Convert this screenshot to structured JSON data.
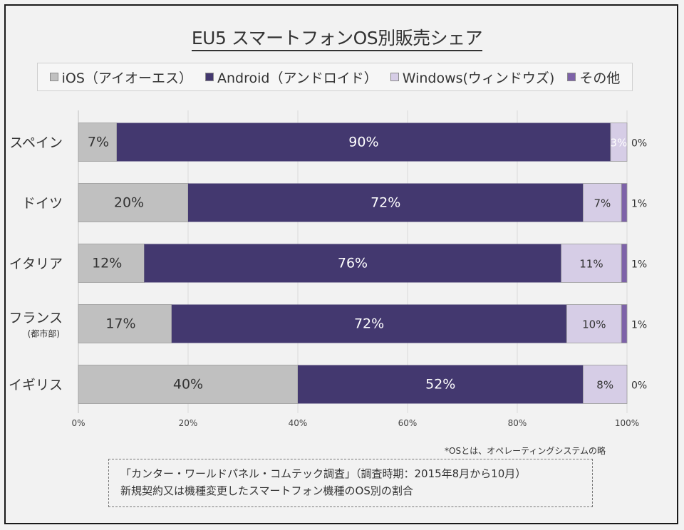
{
  "chart_data": {
    "type": "bar",
    "orientation": "horizontal",
    "stacked": true,
    "title": "EU5 スマートフォンOS別販売シェア",
    "categories": [
      "スペイン",
      "ドイツ",
      "イタリア",
      "フランス",
      "イギリス"
    ],
    "category_sublabels": [
      "",
      "",
      "",
      "(都市部)",
      ""
    ],
    "series": [
      {
        "name": "iOS（アイオーエス）",
        "color": "#c0c0c0",
        "values": [
          7,
          20,
          12,
          17,
          40
        ],
        "labels": [
          "7%",
          "20%",
          "12%",
          "17%",
          "40%"
        ]
      },
      {
        "name": "Android（アンドロイド）",
        "color": "#43386f",
        "values": [
          90,
          72,
          76,
          72,
          52
        ],
        "labels": [
          "90%",
          "72%",
          "76%",
          "72%",
          "52%"
        ]
      },
      {
        "name": "Windows(ウィンドウズ)",
        "color": "#d6cde6",
        "values": [
          3,
          7,
          11,
          10,
          8
        ],
        "labels": [
          "3%",
          "7%",
          "11%",
          "10%",
          "8%"
        ]
      },
      {
        "name": "その他",
        "color": "#7d62a8",
        "values": [
          0,
          1,
          1,
          1,
          0
        ],
        "labels": [
          "0%",
          "1%",
          "1%",
          "1%",
          "0%"
        ]
      }
    ],
    "xlim": [
      0,
      100
    ],
    "xticks": [
      "0%",
      "20%",
      "40%",
      "60%",
      "80%",
      "100%"
    ],
    "grid": true,
    "legend": "top"
  },
  "footnote": "*OSとは、オペレーティングシステムの略",
  "source": {
    "line1": "「カンター・ワールドパネル・コムテック調査」（調査時期：2015年8月から10月）",
    "line2": "新規契約又は機種変更したスマートフォン機種のOS別の割合"
  }
}
